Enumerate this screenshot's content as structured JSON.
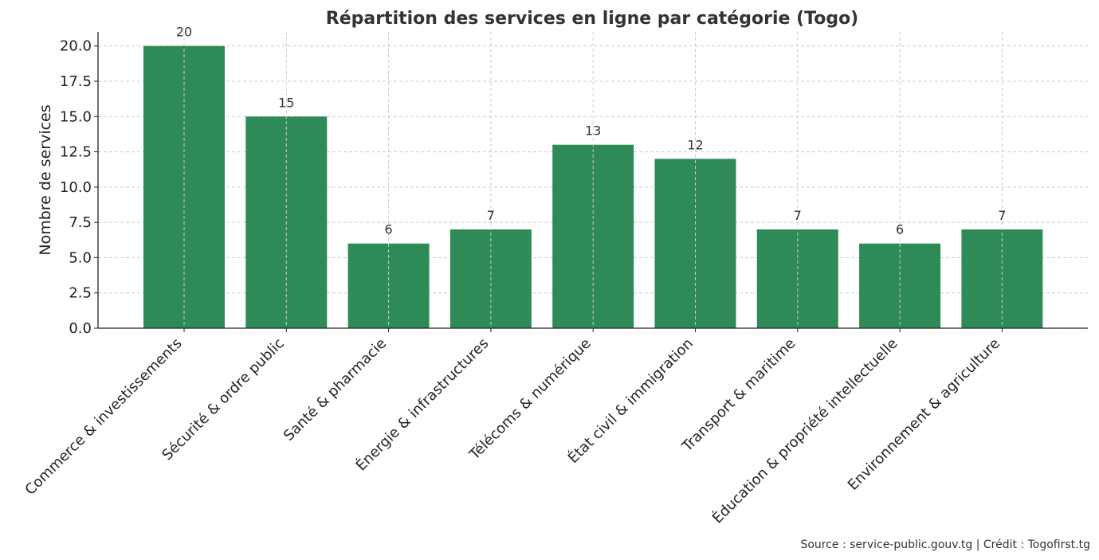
{
  "chart_data": {
    "type": "bar",
    "title": "Répartition des services en ligne par catégorie (Togo)",
    "xlabel": "",
    "ylabel": "Nombre de services",
    "categories": [
      "Commerce & investissements",
      "Sécurité & ordre public",
      "Santé & pharmacie",
      "Énergie & infrastructures",
      "Télécoms & numérique",
      "État civil & immigration",
      "Transport & maritime",
      "Éducation & propriété intellectuelle",
      "Environnement & agriculture"
    ],
    "values": [
      20,
      15,
      6,
      7,
      13,
      12,
      7,
      6,
      7
    ],
    "data_labels": [
      "20",
      "15",
      "6",
      "7",
      "13",
      "12",
      "7",
      "6",
      "7"
    ],
    "ylim": [
      0,
      21
    ],
    "yticks": [
      0,
      2.5,
      5,
      7.5,
      10,
      12.5,
      15,
      17.5,
      20
    ],
    "ytick_labels": [
      "0.0",
      "2.5",
      "5.0",
      "7.5",
      "10.0",
      "12.5",
      "15.0",
      "17.5",
      "20.0"
    ],
    "grid": true,
    "bar_color": "#2e8b57"
  },
  "footer": {
    "source": "Source : service-public.gouv.tg | Crédit : Togofirst.tg"
  }
}
